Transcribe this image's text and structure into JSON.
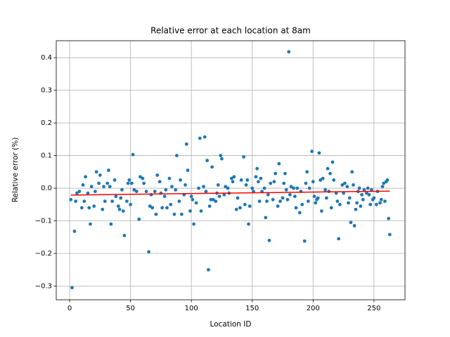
{
  "chart_data": {
    "type": "scatter",
    "title": "Relative error at each location at 8am",
    "xlabel": "Location ID",
    "ylabel": "Relative error (%)",
    "xlim": [
      -11,
      275.5
    ],
    "ylim": [
      -0.342,
      0.452
    ],
    "xticks": [
      0,
      50,
      100,
      150,
      200,
      250
    ],
    "yticks": [
      {
        "value": -0.3,
        "label": "−0.3"
      },
      {
        "value": -0.2,
        "label": "−0.2"
      },
      {
        "value": -0.1,
        "label": "−0.1"
      },
      {
        "value": 0,
        "label": "0.0"
      },
      0.1,
      0.2,
      0.3,
      0.4
    ],
    "grid": true,
    "color": "#1f77b4",
    "x": [
      1,
      2,
      4,
      5,
      6,
      8,
      10,
      11,
      12,
      13,
      15,
      16,
      17,
      18,
      20,
      21,
      22,
      24,
      25,
      27,
      28,
      29,
      31,
      32,
      33,
      34,
      35,
      37,
      38,
      40,
      41,
      42,
      43,
      44,
      45,
      47,
      48,
      49,
      50,
      51,
      52,
      53,
      55,
      57,
      58,
      60,
      61,
      63,
      65,
      66,
      67,
      68,
      70,
      71,
      72,
      74,
      75,
      76,
      78,
      79,
      80,
      82,
      83,
      84,
      86,
      87,
      88,
      90,
      91,
      92,
      94,
      95,
      96,
      97,
      99,
      100,
      101,
      102,
      104,
      106,
      107,
      108,
      110,
      111,
      112,
      113,
      114,
      115,
      116,
      117,
      118,
      120,
      121,
      122,
      123,
      124,
      125,
      127,
      128,
      130,
      131,
      133,
      134,
      135,
      137,
      138,
      140,
      141,
      143,
      144,
      145,
      146,
      147,
      148,
      150,
      151,
      153,
      154,
      155,
      156,
      157,
      158,
      160,
      161,
      162,
      163,
      164,
      165,
      167,
      168,
      169,
      171,
      172,
      173,
      175,
      176,
      177,
      178,
      179,
      180,
      181,
      182,
      184,
      185,
      186,
      187,
      189,
      190,
      191,
      193,
      194,
      195,
      196,
      197,
      199,
      200,
      201,
      202,
      203,
      204,
      205,
      206,
      207,
      208,
      210,
      211,
      212,
      213,
      214,
      215,
      216,
      217,
      219,
      220,
      221,
      222,
      224,
      225,
      226,
      228,
      229,
      230,
      231,
      232,
      233,
      234,
      235,
      236,
      237,
      238,
      239,
      240,
      241,
      242,
      244,
      245,
      246,
      247,
      248,
      249,
      250,
      252,
      253,
      255,
      256,
      257,
      258,
      259,
      260,
      261,
      262,
      263
    ],
    "values": [
      -0.035,
      -0.305,
      -0.132,
      -0.04,
      -0.015,
      -0.01,
      -0.06,
      0.01,
      -0.04,
      0.035,
      -0.015,
      -0.06,
      -0.11,
      0.005,
      -0.055,
      -0.01,
      0.05,
      0.015,
      0.04,
      -0.065,
      0.005,
      -0.04,
      0.015,
      0.055,
      0.005,
      -0.11,
      -0.04,
      0.025,
      -0.025,
      -0.055,
      -0.065,
      -0.03,
      -0.005,
      -0.07,
      -0.145,
      -0.04,
      0.015,
      0.025,
      -0.05,
      0.015,
      0.103,
      -0.005,
      -0.01,
      -0.095,
      0.035,
      0.03,
      0.015,
      -0.01,
      -0.195,
      -0.055,
      -0.02,
      -0.06,
      -0.01,
      -0.08,
      0.04,
      0.02,
      -0.015,
      -0.06,
      -0.025,
      -0.005,
      -0.06,
      0.03,
      -0.05,
      0.005,
      -0.08,
      -0.005,
      0.1,
      -0.04,
      0.025,
      -0.08,
      -0.02,
      0.01,
      0.135,
      0.055,
      -0.07,
      -0.025,
      -0.035,
      -0.11,
      -0.045,
      0,
      0.153,
      -0.07,
      0.005,
      0.157,
      -0.01,
      0.085,
      -0.25,
      -0.055,
      -0.035,
      0.065,
      -0.035,
      -0.04,
      -0.015,
      0.01,
      -0.025,
      0.1,
      0.09,
      -0.02,
      0.005,
      0,
      -0.015,
      0.03,
      0.02,
      0.035,
      -0.065,
      -0.03,
      -0.06,
      0.025,
      0.096,
      -0.05,
      0.01,
      0.025,
      -0.11,
      -0.055,
      0,
      -0.01,
      0.035,
      0.06,
      0.02,
      -0.04,
      0.03,
      -0.01,
      0,
      -0.09,
      -0.04,
      -0.02,
      -0.16,
      0.015,
      -0.035,
      0.02,
      0.045,
      -0.055,
      0.075,
      -0.04,
      -0.03,
      0.015,
      0.045,
      -0.005,
      -0.035,
      0.418,
      -0.02,
      0.005,
      0,
      -0.025,
      -0.06,
      0,
      -0.075,
      -0.01,
      -0.05,
      -0.162,
      0.015,
      0.05,
      -0.04,
      0,
      0.113,
      0.02,
      -0.025,
      -0.045,
      -0.035,
      -0.03,
      0.108,
      0.025,
      -0.07,
      0.03,
      -0.005,
      -0.03,
      0.06,
      -0.01,
      0.045,
      -0.06,
      0.08,
      0.025,
      -0.015,
      -0.04,
      -0.155,
      -0.05,
      0.01,
      -0.015,
      0.015,
      0.005,
      -0.045,
      -0.03,
      -0.105,
      0.05,
      0.01,
      -0.115,
      -0.065,
      -0.045,
      -0.01,
      0,
      -0.055,
      -0.02,
      -0.035,
      -0.005,
      -0.015,
      0,
      -0.02,
      -0.05,
      -0.005,
      -0.035,
      -0.03,
      -0.05,
      -0.01,
      -0.045,
      -0.035,
      0.005,
      0.015,
      -0.04,
      0.02,
      0.025,
      -0.093,
      -0.142
    ],
    "fit": {
      "x": [
        1,
        263
      ],
      "values": [
        -0.021,
        -0.009
      ],
      "color": "#ff0000"
    }
  }
}
